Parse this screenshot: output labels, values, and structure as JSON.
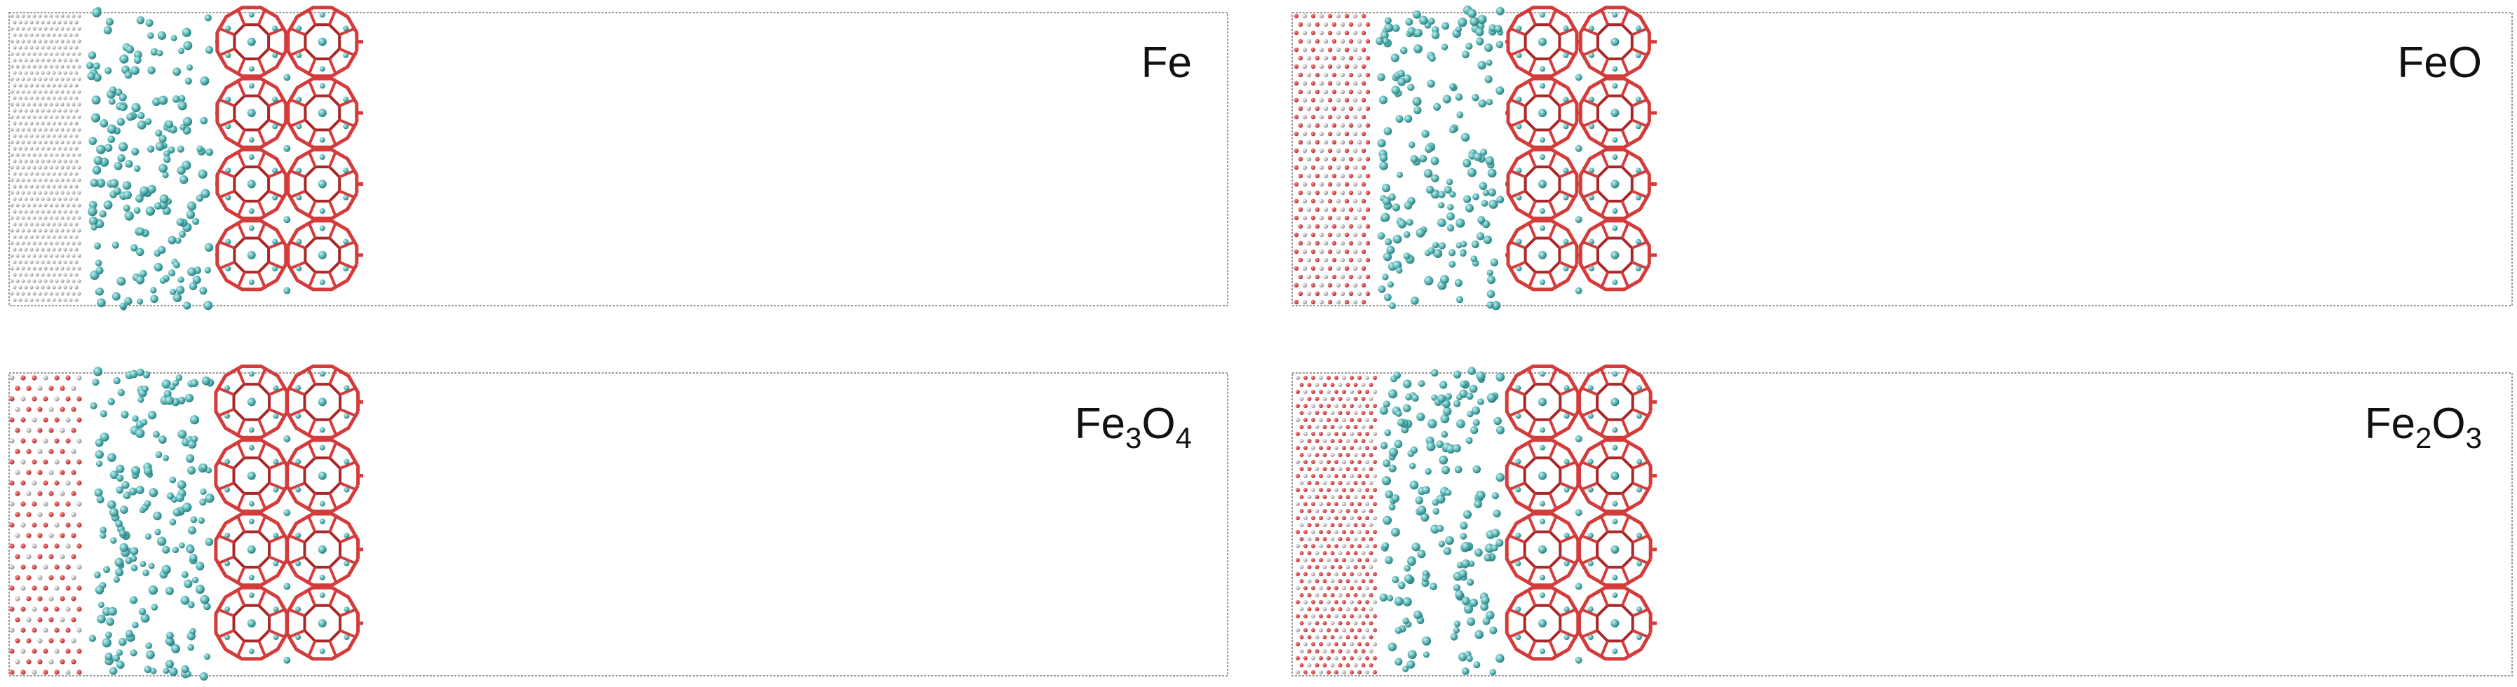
{
  "panels": [
    {
      "id": "fe",
      "label_parts": [
        {
          "text": "Fe",
          "sub": false
        }
      ],
      "substrate": "Fe"
    },
    {
      "id": "feo",
      "label_parts": [
        {
          "text": "FeO",
          "sub": false
        }
      ],
      "substrate": "FeO"
    },
    {
      "id": "fe3o4",
      "label_parts": [
        {
          "text": "Fe",
          "sub": false
        },
        {
          "text": "3",
          "sub": true
        },
        {
          "text": "O",
          "sub": false
        },
        {
          "text": "4",
          "sub": true
        }
      ],
      "substrate": "Fe3O4"
    },
    {
      "id": "fe2o3",
      "label_parts": [
        {
          "text": "Fe",
          "sub": false
        },
        {
          "text": "2",
          "sub": true
        },
        {
          "text": "O",
          "sub": false
        },
        {
          "text": "3",
          "sub": true
        }
      ],
      "substrate": "Fe2O3"
    }
  ],
  "colors": {
    "box": "#9a9a9a",
    "fe_atom": "#b8b8b8",
    "oxygen_atom": "#d03a3a",
    "framework": "#d43c3c",
    "framework_dark": "#a82828",
    "gas_light": "#6fc3c3",
    "gas_dark": "#2f8d8d"
  }
}
